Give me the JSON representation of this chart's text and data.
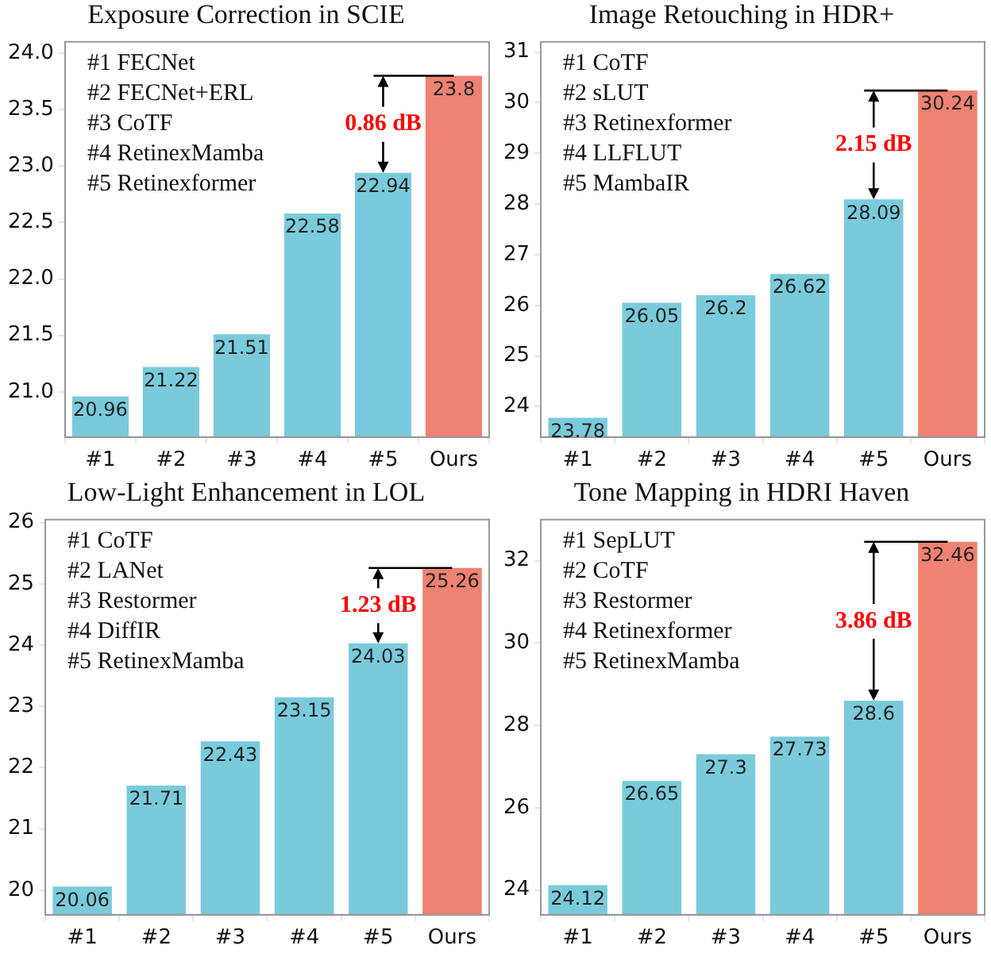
{
  "chart_data": [
    {
      "type": "bar",
      "title": "Exposure Correction in SCIE",
      "categories": [
        "#1",
        "#2",
        "#3",
        "#4",
        "#5",
        "Ours"
      ],
      "values": [
        20.96,
        21.22,
        21.51,
        22.58,
        22.94,
        23.8
      ],
      "colors": [
        "#79cbdb",
        "#79cbdb",
        "#79cbdb",
        "#79cbdb",
        "#79cbdb",
        "#ef8272"
      ],
      "ylim": [
        20.6,
        24.1
      ],
      "yticks": [
        {
          "value": 21,
          "label": "21.0"
        },
        21.5,
        {
          "value": 22,
          "label": "22.0"
        },
        22.5,
        {
          "value": 23,
          "label": "23.0"
        },
        23.5,
        {
          "value": 24,
          "label": "24.0"
        }
      ],
      "data_labels": true,
      "grid": false,
      "annotations": [
        "#1 FECNet",
        "#2 FECNet+ERL",
        "#3 CoTF",
        "#4 RetinexMamba",
        "#5 Retinexformer",
        {
          "text": "0.86 dB",
          "x": "#5",
          "y": 22.94
        }
      ]
    },
    {
      "type": "bar",
      "title": "Image Retouching in HDR+",
      "categories": [
        "#1",
        "#2",
        "#3",
        "#4",
        "#5",
        "Ours"
      ],
      "values": [
        23.78,
        26.05,
        26.2,
        26.62,
        28.09,
        30.24
      ],
      "colors": [
        "#79cbdb",
        "#79cbdb",
        "#79cbdb",
        "#79cbdb",
        "#79cbdb",
        "#ef8272"
      ],
      "ylim": [
        23.4,
        31.2
      ],
      "yticks": [
        24,
        25,
        26,
        27,
        28,
        29,
        30,
        31
      ],
      "data_labels": true,
      "grid": false,
      "annotations": [
        "#1 CoTF",
        "#2 sLUT",
        "#3 Retinexformer",
        "#4 LLFLUT",
        "#5 MambaIR",
        {
          "text": "2.15 dB",
          "x": "#5",
          "y": 28.09
        }
      ]
    },
    {
      "type": "bar",
      "title": "Low-Light Enhancement in LOL",
      "categories": [
        "#1",
        "#2",
        "#3",
        "#4",
        "#5",
        "Ours"
      ],
      "values": [
        20.06,
        21.71,
        22.43,
        23.15,
        24.03,
        25.26
      ],
      "colors": [
        "#79cbdb",
        "#79cbdb",
        "#79cbdb",
        "#79cbdb",
        "#79cbdb",
        "#ef8272"
      ],
      "ylim": [
        19.6,
        26.05
      ],
      "yticks": [
        20,
        21,
        22,
        23,
        24,
        25,
        26
      ],
      "data_labels": true,
      "grid": false,
      "annotations": [
        "#1 CoTF",
        "#2 LANet",
        "#3 Restormer",
        "#4 DiffIR",
        "#5 RetinexMamba",
        {
          "text": "1.23 dB",
          "x": "#5",
          "y": 24.03
        }
      ]
    },
    {
      "type": "bar",
      "title": "Tone Mapping in HDRI Haven",
      "categories": [
        "#1",
        "#2",
        "#3",
        "#4",
        "#5",
        "Ours"
      ],
      "values": [
        24.12,
        26.65,
        27.3,
        27.73,
        28.6,
        32.46
      ],
      "colors": [
        "#79cbdb",
        "#79cbdb",
        "#79cbdb",
        "#79cbdb",
        "#79cbdb",
        "#ef8272"
      ],
      "ylim": [
        23.4,
        33.0
      ],
      "yticks": [
        24,
        26,
        28,
        30,
        32
      ],
      "data_labels": true,
      "grid": false,
      "annotations": [
        "#1 SepLUT",
        "#2 CoTF",
        "#3 Restormer",
        "#4 Retinexformer",
        "#5 RetinexMamba",
        {
          "text": "3.86 dB",
          "x": "#5",
          "y": 28.6
        }
      ]
    }
  ]
}
